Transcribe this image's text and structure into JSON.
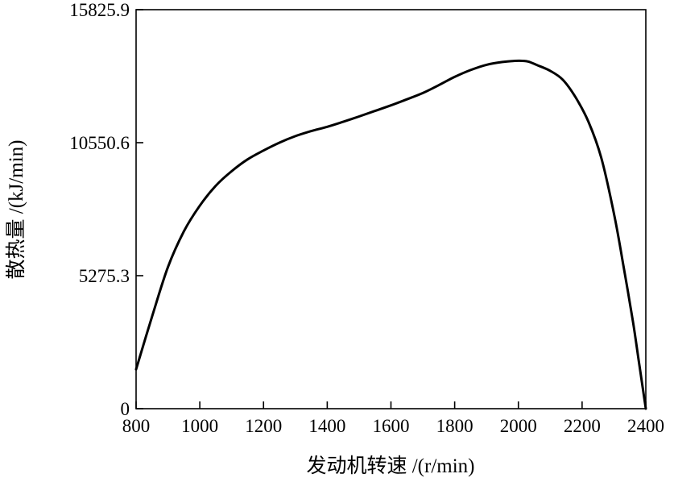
{
  "chart_data": {
    "type": "line",
    "title": "",
    "xlabel": "发动机转速 /(r/min)",
    "ylabel": "散热量 /(kJ/min)",
    "xlim": [
      800,
      2400
    ],
    "ylim": [
      0,
      15825.9
    ],
    "xticks": [
      800,
      1000,
      1200,
      1400,
      1600,
      1800,
      2000,
      2200,
      2400
    ],
    "xtick_labels": [
      "800",
      "1000",
      "1200",
      "1400",
      "1600",
      "1800",
      "2000",
      "2200",
      "2400"
    ],
    "yticks": [
      0,
      5275.3,
      10550.6,
      15825.9
    ],
    "ytick_labels": [
      "0",
      "5275.3",
      "10550.6",
      "15825.9"
    ],
    "grid": false,
    "legend": "none",
    "line_color": "#000000",
    "series": [
      {
        "x": [
          800,
          850,
          900,
          950,
          1000,
          1050,
          1100,
          1150,
          1200,
          1250,
          1300,
          1350,
          1400,
          1450,
          1500,
          1550,
          1600,
          1650,
          1700,
          1750,
          1800,
          1850,
          1900,
          1950,
          2000,
          2030,
          2060,
          2100,
          2140,
          2180,
          2220,
          2260,
          2300,
          2330,
          2360,
          2380,
          2400
        ],
        "y": [
          1560,
          3650,
          5620,
          7030,
          8050,
          8840,
          9420,
          9890,
          10240,
          10550,
          10810,
          11010,
          11180,
          11380,
          11590,
          11810,
          12030,
          12270,
          12520,
          12830,
          13160,
          13430,
          13640,
          13750,
          13800,
          13770,
          13620,
          13400,
          13040,
          12340,
          11380,
          9960,
          7740,
          5650,
          3420,
          1710,
          0
        ]
      }
    ]
  }
}
